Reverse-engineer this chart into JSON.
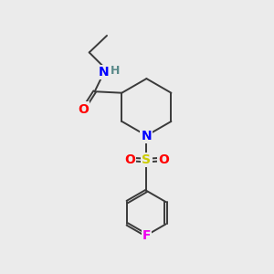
{
  "bg_color": "#ebebeb",
  "bond_color": "#3a3a3a",
  "N_color": "#0000ff",
  "O_color": "#ff0000",
  "S_color": "#cccc00",
  "F_color": "#ee00ee",
  "H_color": "#5a8a8a",
  "line_width": 1.4,
  "figsize": [
    3.0,
    3.0
  ],
  "dpi": 100,
  "xlim": [
    0,
    10
  ],
  "ylim": [
    0,
    10
  ]
}
